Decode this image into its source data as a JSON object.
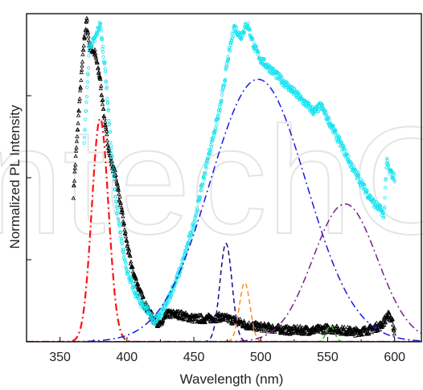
{
  "chart_data": {
    "type": "line",
    "title": "",
    "xlabel": "Wavelength (nm)",
    "ylabel": "Normalized PL Intensity",
    "xlim": [
      325,
      620
    ],
    "ylim": [
      0,
      1.0
    ],
    "x_ticks": [
      350,
      400,
      450,
      500,
      550,
      600
    ],
    "x_tick_labels": [
      "350",
      "400",
      "450",
      "500",
      "550",
      "600"
    ],
    "y_ticks_unlabeled": [
      0,
      0.25,
      0.5,
      0.75,
      1.0
    ],
    "grid": false,
    "legend": "none",
    "watermark_text": "IntechOpen",
    "series": [
      {
        "style": "black open triangles (measured)",
        "color": "#000000",
        "x": [
          360,
          364,
          368,
          370,
          372,
          376,
          380,
          384,
          388,
          392,
          396,
          400,
          404,
          410,
          415,
          420,
          425,
          430,
          440,
          450,
          460,
          470,
          480,
          490,
          500,
          520,
          540,
          550,
          560,
          570,
          580,
          590,
          595,
          598,
          600
        ],
        "y": [
          0.45,
          0.7,
          0.92,
          0.98,
          0.9,
          0.88,
          0.8,
          0.65,
          0.55,
          0.5,
          0.4,
          0.3,
          0.22,
          0.15,
          0.1,
          0.07,
          0.05,
          0.085,
          0.082,
          0.07,
          0.07,
          0.075,
          0.065,
          0.05,
          0.045,
          0.035,
          0.035,
          0.04,
          0.035,
          0.03,
          0.035,
          0.05,
          0.08,
          0.07,
          0.03
        ]
      },
      {
        "style": "cyan open circles (measured)",
        "color": "#17e3f0",
        "x": [
          368,
          372,
          376,
          380,
          384,
          388,
          392,
          396,
          400,
          405,
          410,
          415,
          420,
          425,
          430,
          440,
          450,
          460,
          470,
          475,
          480,
          485,
          490,
          495,
          500,
          510,
          520,
          530,
          540,
          545,
          550,
          560,
          570,
          580,
          585,
          590,
          592,
          594,
          596,
          600
        ],
        "y": [
          0.6,
          0.9,
          0.92,
          0.97,
          0.82,
          0.6,
          0.42,
          0.3,
          0.22,
          0.16,
          0.12,
          0.1,
          0.06,
          0.08,
          0.12,
          0.22,
          0.36,
          0.55,
          0.72,
          0.85,
          0.96,
          0.93,
          0.97,
          0.9,
          0.86,
          0.82,
          0.78,
          0.74,
          0.7,
          0.72,
          0.68,
          0.6,
          0.52,
          0.45,
          0.42,
          0.4,
          0.38,
          0.55,
          0.52,
          0.5
        ]
      },
      {
        "style": "red dash-dot Gaussian fit",
        "color": "#ff1010",
        "center": 380,
        "sigma": 6.2,
        "peak": 0.68
      },
      {
        "style": "blue dash-dot Gaussian fit",
        "color": "#1a1adb",
        "center": 498,
        "sigma": 36,
        "peak": 0.8
      },
      {
        "style": "navy dashed Gaussian fit",
        "color": "#101080",
        "center": 474,
        "sigma": 4.5,
        "peak": 0.3
      },
      {
        "style": "orange dashed Gaussian fit",
        "color": "#ff8c1a",
        "center": 488,
        "sigma": 4,
        "peak": 0.18
      },
      {
        "style": "purple dash-dot Gaussian fit",
        "color": "#7a1f8f",
        "center": 563,
        "sigma": 24,
        "peak": 0.42
      },
      {
        "style": "green dashed Gaussian fit",
        "color": "#2fb52f",
        "center": 552,
        "sigma": 3,
        "peak": 0.05
      }
    ]
  }
}
